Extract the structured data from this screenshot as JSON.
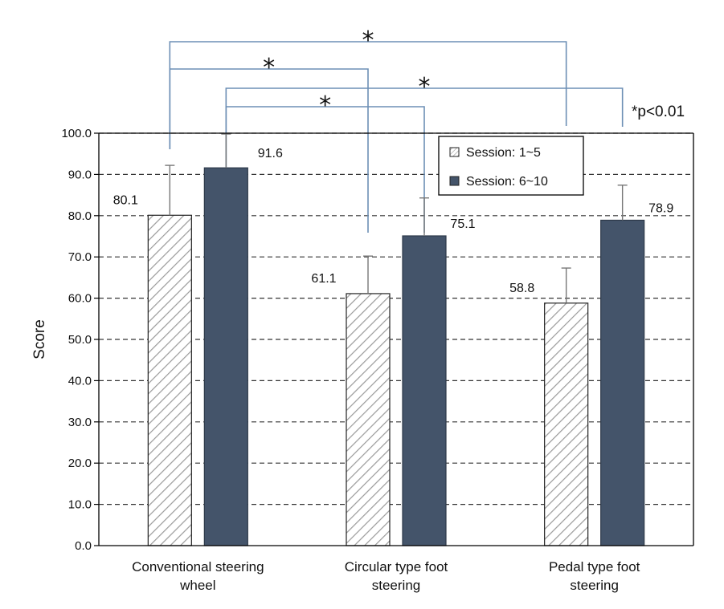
{
  "chart_data": {
    "type": "bar",
    "title": "",
    "xlabel": "",
    "ylabel": "Score",
    "ylim": [
      0,
      100
    ],
    "y_ticks": [
      "0.0",
      "10.0",
      "20.0",
      "30.0",
      "40.0",
      "50.0",
      "60.0",
      "70.0",
      "80.0",
      "90.0",
      "100.0"
    ],
    "grid": "dashed horizontal",
    "legend_position": "top-right",
    "categories": [
      [
        "Conventional steering",
        "wheel"
      ],
      [
        "Circular type foot",
        "steering"
      ],
      [
        "Pedal type foot",
        "steering"
      ]
    ],
    "series": [
      {
        "name": "Session: 1~5",
        "values": [
          80.1,
          61.1,
          58.8
        ],
        "labels": [
          "80.1",
          "61.1",
          "58.8"
        ],
        "error_upper": [
          92.2,
          70.2,
          67.3
        ],
        "pattern": "hatched",
        "color": "#ffffff"
      },
      {
        "name": "Session: 6~10",
        "values": [
          91.6,
          75.1,
          78.9
        ],
        "labels": [
          "91.6",
          "75.1",
          "78.9"
        ],
        "error_upper": [
          99.8,
          84.3,
          87.4
        ],
        "pattern": "solid",
        "color": "#44546a"
      }
    ],
    "significance": {
      "symbol": "*",
      "note": "*p<0.01",
      "comparisons": [
        {
          "from": [
            0,
            0
          ],
          "to": [
            2,
            0
          ]
        },
        {
          "from": [
            0,
            0
          ],
          "to": [
            1,
            0
          ]
        },
        {
          "from": [
            0,
            1
          ],
          "to": [
            2,
            1
          ]
        },
        {
          "from": [
            0,
            1
          ],
          "to": [
            1,
            1
          ]
        }
      ]
    },
    "colors": {
      "bracket": "#6d8fb5",
      "axis": "#000000",
      "grid": "#333333",
      "hatch": "#9a9a9a"
    }
  }
}
